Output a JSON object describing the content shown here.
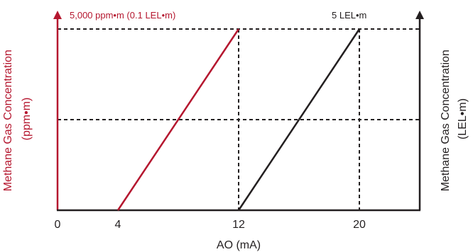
{
  "chart_data": {
    "type": "line",
    "xlabel": "AO (mA)",
    "ylabel_left": [
      "Methane Gas Concentration",
      "(ppm•m)"
    ],
    "ylabel_right": [
      "Methane Gas Concentration",
      "(LEL•m)"
    ],
    "xlim": [
      0,
      24
    ],
    "ylim": [
      0,
      1
    ],
    "x_ticks": [
      0,
      4,
      12,
      20
    ],
    "x_tick_labels": [
      "0",
      "4",
      "12",
      "20"
    ],
    "grid": "dashed reference lines at y = 0.5 and y = 1",
    "series": [
      {
        "name": "5,000 ppm•m (0.1 LEL•m)",
        "axis": "left",
        "color": "#b5172f",
        "x": [
          4,
          12
        ],
        "y": [
          0,
          1
        ]
      },
      {
        "name": "5 LEL•m",
        "axis": "right",
        "color": "#231f20",
        "x": [
          12,
          20
        ],
        "y": [
          0,
          1
        ]
      }
    ],
    "reference_lines": {
      "horizontal": [
        0.5,
        1
      ],
      "vertical": [
        12,
        20
      ]
    },
    "colors": {
      "left_axis": "#b5172f",
      "right_axis": "#231f20",
      "axis_base": "#231f20"
    }
  }
}
